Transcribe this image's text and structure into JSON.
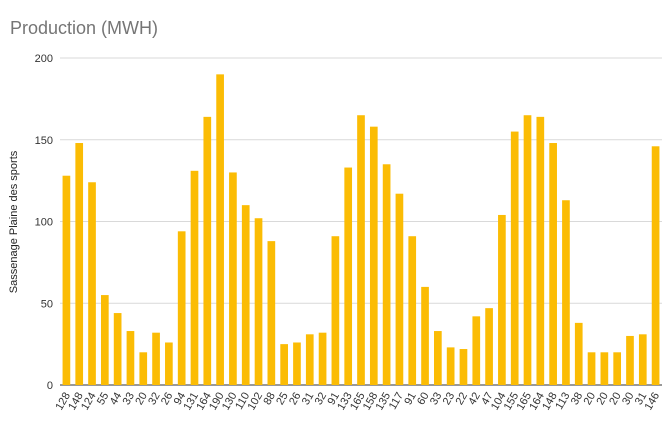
{
  "chart_data": {
    "type": "bar",
    "title": "Production (MWH)",
    "xlabel": "",
    "ylabel": "Sassenage Plaine des sports",
    "ylim": [
      0,
      200
    ],
    "yticks": [
      0,
      50,
      100,
      150,
      200
    ],
    "grid": true,
    "legend": "none",
    "bar_color": "#FBBC04",
    "categories": [
      "128",
      "148",
      "124",
      "55",
      "44",
      "33",
      "20",
      "32",
      "26",
      "94",
      "131",
      "164",
      "190",
      "130",
      "110",
      "102",
      "88",
      "25",
      "26",
      "31",
      "32",
      "91",
      "133",
      "165",
      "158",
      "135",
      "117",
      "91",
      "60",
      "33",
      "23",
      "22",
      "42",
      "47",
      "104",
      "155",
      "165",
      "164",
      "148",
      "113",
      "38",
      "20",
      "20",
      "20",
      "30",
      "31",
      "146"
    ],
    "values": [
      128,
      148,
      124,
      55,
      44,
      33,
      20,
      32,
      26,
      94,
      131,
      164,
      190,
      130,
      110,
      102,
      88,
      25,
      26,
      31,
      32,
      91,
      133,
      165,
      158,
      135,
      117,
      91,
      60,
      33,
      23,
      22,
      42,
      47,
      104,
      155,
      165,
      164,
      148,
      113,
      38,
      20,
      20,
      20,
      30,
      31,
      146
    ]
  }
}
